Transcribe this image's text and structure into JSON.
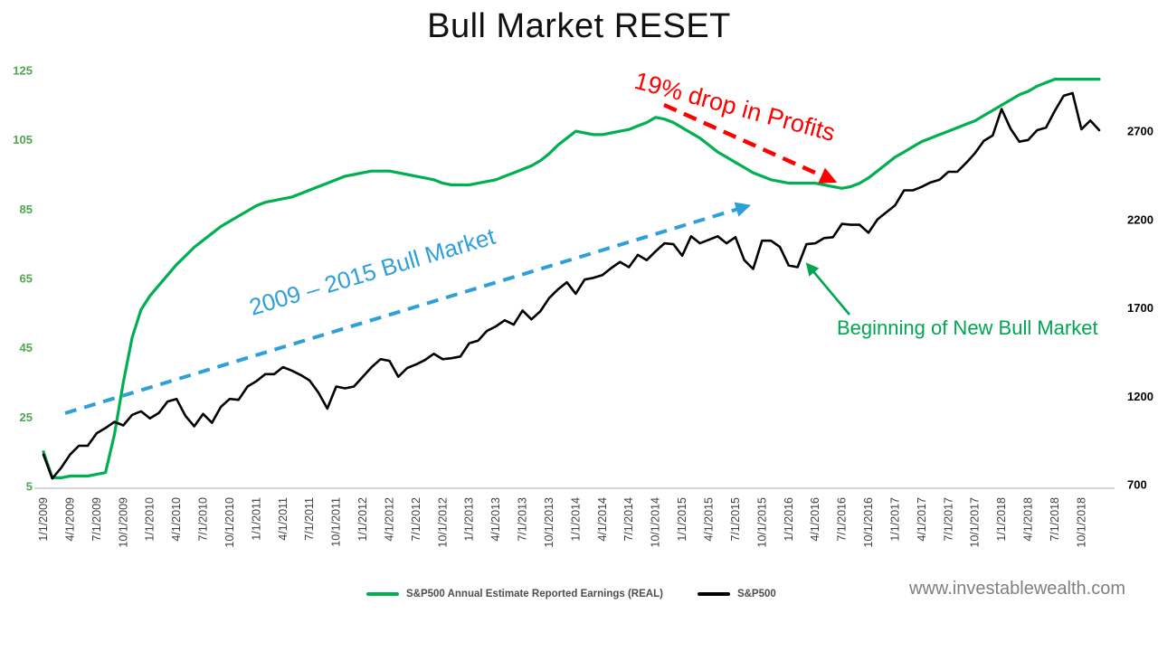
{
  "title": "Bull Market RESET",
  "watermark": "www.investablewealth.com",
  "legend": {
    "earnings_label": "S&P500 Annual Estimate Reported Earnings (REAL)",
    "sp500_label": "S&P500"
  },
  "annotations": {
    "bull_market": {
      "text": "2009 – 2015 Bull Market",
      "color": "#2E9FD8"
    },
    "profit_drop": {
      "text": "19% drop in Profits",
      "color": "#FF0000"
    },
    "new_bull": {
      "text": "Beginning of New Bull Market",
      "color": "#00A651"
    }
  },
  "chart_data": {
    "type": "line",
    "title": "Bull Market RESET",
    "x_tick_labels": [
      "1/1/2009",
      "4/1/2009",
      "7/1/2009",
      "10/1/2009",
      "1/1/2010",
      "4/1/2010",
      "7/1/2010",
      "10/1/2010",
      "1/1/2011",
      "4/1/2011",
      "7/1/2011",
      "10/1/2011",
      "1/1/2012",
      "4/1/2012",
      "7/1/2012",
      "10/1/2012",
      "1/1/2013",
      "4/1/2013",
      "7/1/2013",
      "10/1/2013",
      "1/1/2014",
      "4/1/2014",
      "7/1/2014",
      "10/1/2014",
      "1/1/2015",
      "4/1/2015",
      "7/1/2015",
      "10/1/2015",
      "1/1/2016",
      "4/1/2016",
      "7/1/2016",
      "10/1/2016",
      "1/1/2017",
      "4/1/2017",
      "7/1/2017",
      "10/1/2017",
      "1/1/2018",
      "4/1/2018",
      "7/1/2018",
      "10/1/2018"
    ],
    "months_per_point": 1,
    "x_ticks_every_n_points": 3,
    "left_axis": {
      "ticks": [
        125,
        105,
        85,
        65,
        45,
        25,
        5
      ],
      "range": [
        5,
        125
      ],
      "color": "#4EA74E"
    },
    "right_axis": {
      "ticks": [
        2700,
        2200,
        1700,
        1200,
        700
      ],
      "range": [
        700,
        2700
      ],
      "color": "#000000"
    },
    "grid": false,
    "legend_position": "bottom",
    "series": [
      {
        "name": "S&P500 Annual Estimate Reported Earnings (REAL)",
        "color": "#00B050",
        "axis": "left",
        "stroke_width": 3.2,
        "values": [
          15,
          7.5,
          7.5,
          8,
          8,
          8,
          8.5,
          9,
          20,
          35,
          48,
          56,
          60,
          63,
          66,
          69,
          71.5,
          74,
          76,
          78,
          80,
          81.5,
          83,
          84.5,
          86,
          87,
          87.5,
          88,
          88.5,
          89.5,
          90.5,
          91.5,
          92.5,
          93.5,
          94.5,
          95,
          95.5,
          96,
          96,
          96,
          95.5,
          95,
          94.5,
          94,
          93.5,
          92.5,
          92,
          92,
          92,
          92.5,
          93,
          93.5,
          94.5,
          95.5,
          96.5,
          97.5,
          99,
          101,
          103.5,
          105.5,
          107.5,
          107,
          106.5,
          106.5,
          107,
          107.5,
          108,
          109,
          110,
          111.5,
          111,
          110,
          108.5,
          107,
          105.5,
          103.5,
          101.5,
          100,
          98.5,
          97,
          95.5,
          94.5,
          93.5,
          93,
          92.5,
          92.5,
          92.5,
          92.5,
          92,
          91.5,
          91,
          91.5,
          92.5,
          94,
          96,
          98,
          100,
          101.5,
          103,
          104.5,
          105.5,
          106.5,
          107.5,
          108.5,
          109.5,
          110.5,
          112,
          113.5,
          115,
          116.5,
          118,
          119,
          120.5,
          121.5,
          122.5,
          122.5,
          122.5,
          122.5,
          122.5,
          122.5
        ]
      },
      {
        "name": "S&P500",
        "color": "#000000",
        "axis": "right",
        "stroke_width": 2.6,
        "values": [
          870,
          735,
          795,
          870,
          920,
          920,
          990,
          1020,
          1055,
          1035,
          1095,
          1115,
          1075,
          1105,
          1170,
          1185,
          1090,
          1030,
          1100,
          1050,
          1140,
          1185,
          1180,
          1255,
          1285,
          1325,
          1325,
          1365,
          1345,
          1320,
          1290,
          1220,
          1130,
          1255,
          1245,
          1255,
          1310,
          1365,
          1410,
          1400,
          1310,
          1360,
          1380,
          1405,
          1440,
          1410,
          1415,
          1425,
          1500,
          1515,
          1570,
          1595,
          1630,
          1605,
          1685,
          1635,
          1680,
          1755,
          1805,
          1845,
          1780,
          1860,
          1870,
          1885,
          1925,
          1960,
          1930,
          2000,
          1970,
          2020,
          2065,
          2060,
          1995,
          2105,
          2065,
          2085,
          2105,
          2065,
          2100,
          1970,
          1920,
          2080,
          2080,
          2045,
          1940,
          1930,
          2060,
          2065,
          2095,
          2100,
          2175,
          2170,
          2170,
          2125,
          2200,
          2240,
          2280,
          2365,
          2365,
          2385,
          2410,
          2425,
          2470,
          2470,
          2520,
          2575,
          2645,
          2675,
          2825,
          2715,
          2640,
          2650,
          2705,
          2720,
          2815,
          2900,
          2915,
          2710,
          2760,
          2705
        ]
      }
    ]
  }
}
